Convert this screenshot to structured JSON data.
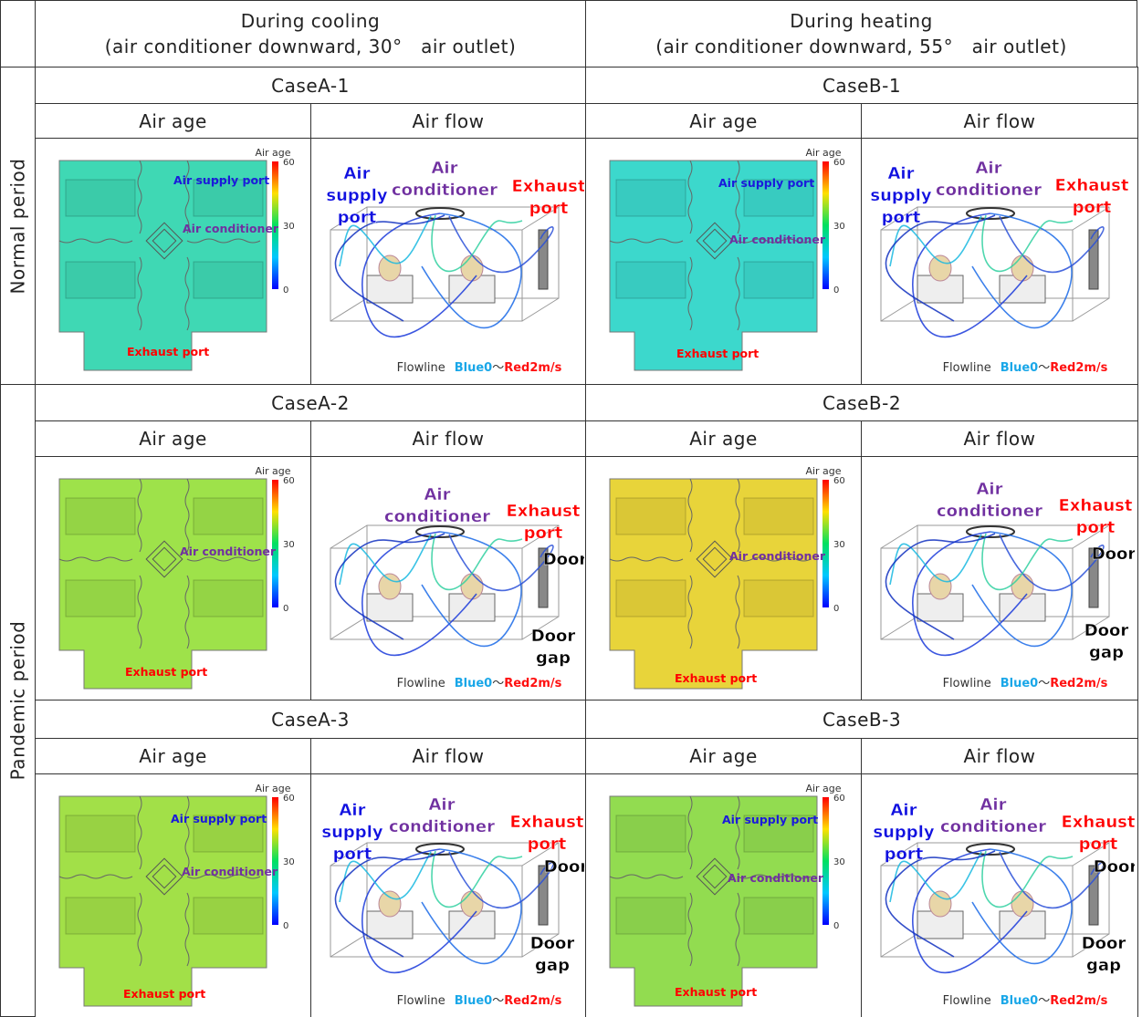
{
  "header": {
    "cooling": {
      "title": "During cooling",
      "subtitle": "(air conditioner downward, 30°　air outlet)"
    },
    "heating": {
      "title": "During heating",
      "subtitle": "(air conditioner downward, 55°　air outlet)"
    }
  },
  "periods": [
    "Normal period",
    "Pandemic period"
  ],
  "cases": [
    {
      "name": "CaseA-1",
      "air_age": {
        "heading": "Air age",
        "room_color": "#3fd8b4",
        "legend_title": "Air age",
        "scale": [
          60,
          30,
          0
        ],
        "labels": [
          {
            "text": "Air supply port",
            "color": "#1a1adb"
          },
          {
            "text": "Air conditioner",
            "color": "#7030a0"
          },
          {
            "text": "Exhaust port",
            "color": "#ff0000"
          }
        ]
      },
      "air_flow": {
        "heading": "Air flow",
        "labels": [
          {
            "lines": [
              "Air",
              "supply",
              "port"
            ],
            "color": "#1010e0"
          },
          {
            "lines": [
              "Air",
              "conditioner"
            ],
            "color": "#7030a0"
          },
          {
            "lines": [
              "Exhaust",
              "port"
            ],
            "color": "#ff0000"
          }
        ],
        "footer": [
          "Flowline",
          "Blue0",
          "～",
          "Red2m/s"
        ]
      }
    },
    {
      "name": "CaseB-1",
      "air_age": {
        "heading": "Air age",
        "room_color": "#3cd8cc",
        "legend_title": "Air age",
        "scale": [
          60,
          30,
          0
        ],
        "labels": [
          {
            "text": "Air supply port",
            "color": "#1a1adb"
          },
          {
            "text": "Air conditioner",
            "color": "#7030a0"
          },
          {
            "text": "Exhaust port",
            "color": "#ff0000"
          }
        ]
      },
      "air_flow": {
        "heading": "Air flow",
        "labels": [
          {
            "lines": [
              "Air",
              "supply",
              "port"
            ],
            "color": "#1010e0"
          },
          {
            "lines": [
              "Air",
              "conditioner"
            ],
            "color": "#7030a0"
          },
          {
            "lines": [
              "Exhaust",
              "port"
            ],
            "color": "#ff0000"
          }
        ],
        "footer": [
          "Flowline",
          "Blue0",
          "～",
          "Red2m/s"
        ]
      }
    },
    {
      "name": "CaseA-2",
      "air_age": {
        "heading": "Air age",
        "room_color": "#9ee24a",
        "legend_title": "Air age",
        "scale": [
          60,
          30,
          0
        ],
        "labels": [
          {
            "text": "Air conditioner",
            "color": "#7030a0"
          },
          {
            "text": "Exhaust port",
            "color": "#ff0000"
          }
        ]
      },
      "air_flow": {
        "heading": "Air flow",
        "labels": [
          {
            "lines": [
              "Air",
              "conditioner"
            ],
            "color": "#7030a0"
          },
          {
            "lines": [
              "Exhaust",
              "port"
            ],
            "color": "#ff0000"
          },
          {
            "lines": [
              "Door"
            ],
            "color": "#000000"
          },
          {
            "lines": [
              "Door",
              "gap"
            ],
            "color": "#000000"
          }
        ],
        "footer": [
          "Flowline",
          "Blue0",
          "～",
          "Red2m/s"
        ]
      }
    },
    {
      "name": "CaseB-2",
      "air_age": {
        "heading": "Air age",
        "room_color": "#e8d43a",
        "legend_title": "Air age",
        "scale": [
          60,
          30,
          0
        ],
        "labels": [
          {
            "text": "Air conditioner",
            "color": "#7030a0"
          },
          {
            "text": "Exhaust port",
            "color": "#ff0000"
          }
        ]
      },
      "air_flow": {
        "heading": "Air flow",
        "labels": [
          {
            "lines": [
              "Air",
              "conditioner"
            ],
            "color": "#7030a0"
          },
          {
            "lines": [
              "Exhaust",
              "port"
            ],
            "color": "#ff0000"
          },
          {
            "lines": [
              "Door"
            ],
            "color": "#000000"
          },
          {
            "lines": [
              "Door",
              "gap"
            ],
            "color": "#000000"
          }
        ],
        "footer": [
          "Flowline",
          "Blue0",
          "～",
          "Red2m/s"
        ]
      }
    },
    {
      "name": "CaseA-3",
      "air_age": {
        "heading": "Air age",
        "room_color": "#a2e048",
        "legend_title": "Air age",
        "scale": [
          60,
          30,
          0
        ],
        "labels": [
          {
            "text": "Air supply port",
            "color": "#1a1adb"
          },
          {
            "text": "Air conditioner",
            "color": "#7030a0"
          },
          {
            "text": "Exhaust port",
            "color": "#ff0000"
          }
        ]
      },
      "air_flow": {
        "heading": "Air flow",
        "labels": [
          {
            "lines": [
              "Air",
              "supply",
              "port"
            ],
            "color": "#1010e0"
          },
          {
            "lines": [
              "Air",
              "conditioner"
            ],
            "color": "#7030a0"
          },
          {
            "lines": [
              "Exhaust",
              "port"
            ],
            "color": "#ff0000"
          },
          {
            "lines": [
              "Door"
            ],
            "color": "#000000"
          },
          {
            "lines": [
              "Door",
              "gap"
            ],
            "color": "#000000"
          }
        ],
        "footer": [
          "Flowline",
          "Blue0",
          "～",
          "Red2m/s"
        ]
      }
    },
    {
      "name": "CaseB-3",
      "air_age": {
        "heading": "Air age",
        "room_color": "#92dc50",
        "legend_title": "Air age",
        "scale": [
          60,
          30,
          0
        ],
        "labels": [
          {
            "text": "Air supply port",
            "color": "#1a1adb"
          },
          {
            "text": "Air conditioner",
            "color": "#7030a0"
          },
          {
            "text": "Exhaust port",
            "color": "#ff0000"
          }
        ]
      },
      "air_flow": {
        "heading": "Air flow",
        "labels": [
          {
            "lines": [
              "Air",
              "supply",
              "port"
            ],
            "color": "#1010e0"
          },
          {
            "lines": [
              "Air",
              "conditioner"
            ],
            "color": "#7030a0"
          },
          {
            "lines": [
              "Exhaust",
              "port"
            ],
            "color": "#ff0000"
          },
          {
            "lines": [
              "Door"
            ],
            "color": "#000000"
          },
          {
            "lines": [
              "Door",
              "gap"
            ],
            "color": "#000000"
          }
        ],
        "footer": [
          "Flowline",
          "Blue0",
          "～",
          "Red2m/s"
        ]
      }
    }
  ]
}
